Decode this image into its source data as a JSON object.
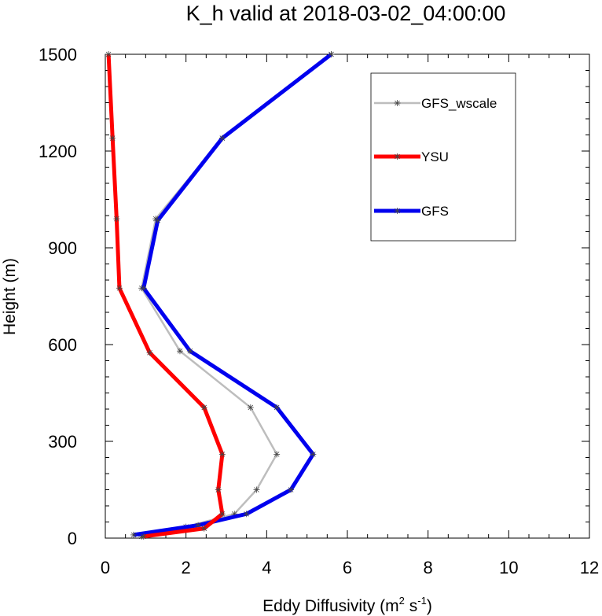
{
  "chart_data": {
    "type": "line",
    "title": "K_h valid at 2018-03-02_04:00:00",
    "xlabel": "Eddy Diffusivity (m",
    "xlabel_sup1": "2",
    "xlabel_mid": " s",
    "xlabel_sup2": "-1",
    "xlabel_end": ")",
    "ylabel": "Height (m)",
    "xlim": [
      0,
      12
    ],
    "ylim": [
      0,
      1500
    ],
    "x_ticks": [
      "0",
      "2",
      "4",
      "6",
      "8",
      "10",
      "12"
    ],
    "y_ticks": [
      "0",
      "300",
      "600",
      "900",
      "1200",
      "1500"
    ],
    "grid": false,
    "legend_position": "top-right",
    "series": [
      {
        "name": "GFS_wscale",
        "color": "#bdbdbd",
        "marker": "asterisk",
        "points": [
          [
            0.9,
            5
          ],
          [
            2.0,
            35
          ],
          [
            3.2,
            75
          ],
          [
            3.75,
            150
          ],
          [
            4.25,
            260
          ],
          [
            3.6,
            405
          ],
          [
            1.85,
            580
          ],
          [
            0.9,
            775
          ],
          [
            1.25,
            990
          ],
          [
            2.9,
            1240
          ],
          [
            5.6,
            1500
          ]
        ]
      },
      {
        "name": "YSU",
        "color": "#ff0000",
        "marker": "asterisk",
        "points": [
          [
            0.95,
            5
          ],
          [
            2.45,
            30
          ],
          [
            2.9,
            75
          ],
          [
            2.8,
            150
          ],
          [
            2.9,
            260
          ],
          [
            2.45,
            405
          ],
          [
            1.1,
            575
          ],
          [
            0.35,
            775
          ],
          [
            0.28,
            990
          ],
          [
            0.18,
            1240
          ],
          [
            0.08,
            1500
          ]
        ]
      },
      {
        "name": "GFS",
        "color": "#0000ee",
        "marker": "asterisk",
        "points": [
          [
            0.7,
            10
          ],
          [
            2.3,
            40
          ],
          [
            3.5,
            75
          ],
          [
            4.6,
            150
          ],
          [
            5.15,
            260
          ],
          [
            4.25,
            405
          ],
          [
            2.1,
            580
          ],
          [
            0.95,
            775
          ],
          [
            1.3,
            985
          ],
          [
            2.9,
            1240
          ],
          [
            5.6,
            1500
          ]
        ]
      }
    ]
  }
}
